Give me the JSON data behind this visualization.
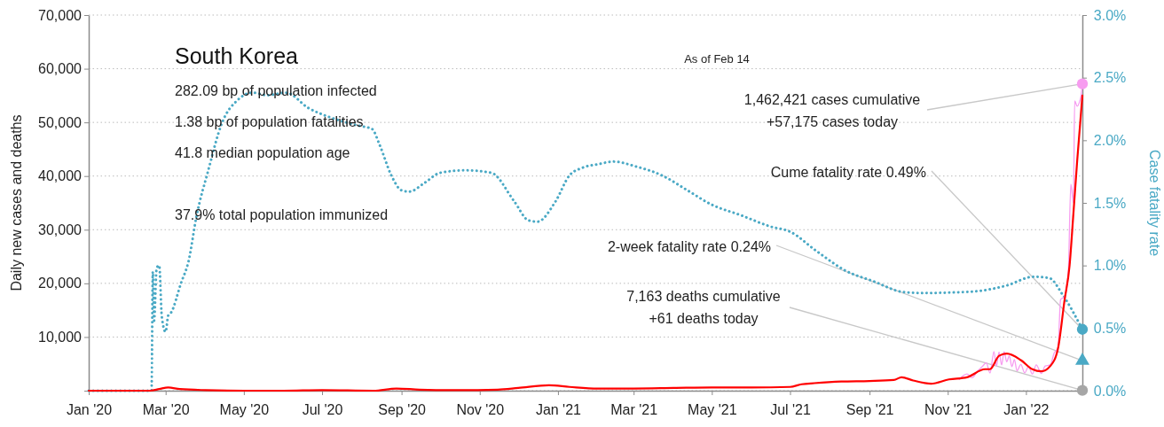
{
  "chart_data": {
    "type": "line",
    "title": "South Korea",
    "ylabel": "Daily new cases and deaths",
    "y2label": "Case fatality rate",
    "xlim": [
      "2020-01-01",
      "2022-02-14"
    ],
    "xticks": [
      {
        "value": "2020-01-01",
        "label": "Jan '20"
      },
      {
        "value": "2020-03-01",
        "label": "Mar '20"
      },
      {
        "value": "2020-05-01",
        "label": "May '20"
      },
      {
        "value": "2020-07-01",
        "label": "Jul '20"
      },
      {
        "value": "2020-09-01",
        "label": "Sep '20"
      },
      {
        "value": "2020-11-01",
        "label": "Nov '20"
      },
      {
        "value": "2021-01-01",
        "label": "Jan '21"
      },
      {
        "value": "2021-03-01",
        "label": "Mar '21"
      },
      {
        "value": "2021-05-01",
        "label": "May '21"
      },
      {
        "value": "2021-07-01",
        "label": "Jul '21"
      },
      {
        "value": "2021-09-01",
        "label": "Sep '21"
      },
      {
        "value": "2021-11-01",
        "label": "Nov '21"
      },
      {
        "value": "2022-01-01",
        "label": "Jan '22"
      }
    ],
    "ylim": [
      0,
      70000
    ],
    "yticks": [
      {
        "value": 0,
        "label": null
      },
      {
        "value": 10000,
        "label": "10,000"
      },
      {
        "value": 20000,
        "label": "20,000"
      },
      {
        "value": 30000,
        "label": "30,000"
      },
      {
        "value": 40000,
        "label": "40,000"
      },
      {
        "value": 50000,
        "label": "50,000"
      },
      {
        "value": 60000,
        "label": "60,000"
      },
      {
        "value": 70000,
        "label": "70,000"
      }
    ],
    "y2lim": [
      0,
      3
    ],
    "y2ticks": [
      {
        "value": 0,
        "label": "0.0%"
      },
      {
        "value": 0.5,
        "label": "0.5%"
      },
      {
        "value": 1,
        "label": "1.0%"
      },
      {
        "value": 1.5,
        "label": "1.5%"
      },
      {
        "value": 2,
        "label": "2.0%"
      },
      {
        "value": 2.5,
        "label": "2.5%"
      },
      {
        "value": 3,
        "label": "3.0%"
      }
    ],
    "grid": "y",
    "series": [
      {
        "axis": "y2",
        "color": "#4aa9c5",
        "line_style": "dotted",
        "marker": "none",
        "x": [
          "2020-01-01",
          "2020-02-19",
          "2020-02-20",
          "2020-02-21",
          "2020-02-23",
          "2020-02-25",
          "2020-02-27",
          "2020-03-01",
          "2020-03-03",
          "2020-03-05",
          "2020-03-13",
          "2020-03-19",
          "2020-03-25",
          "2020-04-03",
          "2020-04-14",
          "2020-04-26",
          "2020-05-08",
          "2020-05-19",
          "2020-06-03",
          "2020-06-20",
          "2020-07-11",
          "2020-07-28",
          "2020-08-09",
          "2020-08-15",
          "2020-08-24",
          "2020-09-01",
          "2020-09-07",
          "2020-09-19",
          "2020-10-01",
          "2020-10-21",
          "2020-11-10",
          "2020-11-28",
          "2020-12-09",
          "2020-12-16",
          "2020-12-30",
          "2021-01-10",
          "2021-01-20",
          "2021-02-02",
          "2021-02-13",
          "2021-03-03",
          "2021-03-23",
          "2021-04-12",
          "2021-04-30",
          "2021-05-24",
          "2021-06-16",
          "2021-07-01",
          "2021-07-21",
          "2021-08-13",
          "2021-09-05",
          "2021-09-26",
          "2021-10-11",
          "2021-11-18",
          "2021-12-17",
          "2022-01-07",
          "2022-01-19",
          "2022-01-30",
          "2022-02-14"
        ],
        "values": [
          0,
          0,
          0.95,
          0.56,
          0.98,
          1.0,
          0.59,
          0.47,
          0.6,
          0.62,
          0.86,
          1.04,
          1.39,
          1.75,
          2.14,
          2.32,
          2.38,
          2.36,
          2.38,
          2.26,
          2.17,
          2.12,
          2.09,
          1.96,
          1.72,
          1.6,
          1.59,
          1.66,
          1.74,
          1.76,
          1.74,
          1.51,
          1.36,
          1.35,
          1.51,
          1.72,
          1.78,
          1.81,
          1.83,
          1.79,
          1.72,
          1.6,
          1.49,
          1.4,
          1.31,
          1.27,
          1.12,
          0.96,
          0.87,
          0.79,
          0.78,
          0.79,
          0.84,
          0.91,
          0.9,
          0.76,
          0.49
        ]
      },
      {
        "color": "#f79cf0",
        "marker": "none",
        "x": [
          "2021-11-10",
          "2021-11-16",
          "2021-11-20",
          "2021-11-24",
          "2021-11-28",
          "2021-12-01",
          "2021-12-04",
          "2021-12-07",
          "2021-12-09",
          "2021-12-11",
          "2021-12-13",
          "2021-12-15",
          "2021-12-17",
          "2021-12-19",
          "2021-12-21",
          "2021-12-23",
          "2021-12-25",
          "2021-12-28",
          "2021-12-31",
          "2022-01-03",
          "2022-01-06",
          "2022-01-09",
          "2022-01-13",
          "2022-01-16",
          "2022-01-20",
          "2022-01-23",
          "2022-01-26",
          "2022-01-28",
          "2022-01-31",
          "2022-02-03",
          "2022-02-05",
          "2022-02-07",
          "2022-02-08",
          "2022-02-10",
          "2022-02-12",
          "2022-02-13",
          "2022-02-14"
        ],
        "values": [
          2100,
          3100,
          2400,
          3600,
          4500,
          5200,
          3300,
          7300,
          4600,
          7200,
          4800,
          7300,
          5400,
          6500,
          4500,
          5800,
          3700,
          4900,
          3300,
          4500,
          3100,
          4800,
          3200,
          4600,
          4800,
          7000,
          8000,
          17000,
          17500,
          22000,
          38500,
          35000,
          54000,
          53000,
          54000,
          55000,
          57175
        ]
      },
      {
        "color": "#ff0000",
        "marker": "none",
        "x": [
          "2020-01-01",
          "2020-02-18",
          "2020-02-25",
          "2020-03-03",
          "2020-03-12",
          "2020-04-01",
          "2020-05-01",
          "2020-06-01",
          "2020-07-01",
          "2020-08-10",
          "2020-08-28",
          "2020-09-15",
          "2020-10-15",
          "2020-11-15",
          "2020-12-01",
          "2020-12-25",
          "2021-01-10",
          "2021-02-01",
          "2021-03-01",
          "2021-04-01",
          "2021-05-01",
          "2021-06-01",
          "2021-07-01",
          "2021-07-10",
          "2021-07-20",
          "2021-08-10",
          "2021-09-01",
          "2021-09-20",
          "2021-09-26",
          "2021-10-05",
          "2021-10-19",
          "2021-11-02",
          "2021-11-16",
          "2021-11-30",
          "2021-12-04",
          "2021-12-11",
          "2021-12-17",
          "2021-12-28",
          "2022-01-06",
          "2022-01-13",
          "2022-01-20",
          "2022-01-26",
          "2022-01-31",
          "2022-02-04",
          "2022-02-07",
          "2022-02-10",
          "2022-02-14"
        ],
        "values": [
          0,
          0,
          300,
          600,
          300,
          100,
          0,
          0,
          100,
          0,
          400,
          200,
          100,
          200,
          500,
          1000,
          700,
          400,
          400,
          500,
          600,
          600,
          700,
          1200,
          1400,
          1700,
          1800,
          2000,
          2500,
          1900,
          1300,
          2100,
          2500,
          4000,
          4000,
          6500,
          6900,
          5700,
          4000,
          3600,
          4600,
          7900,
          16700,
          23300,
          33000,
          43000,
          55000
        ]
      },
      {
        "type": "scatter",
        "color": "#f79cf0",
        "marker": "circle",
        "x": [
          "2022-02-14"
        ],
        "values": [
          57175
        ]
      },
      {
        "type": "scatter",
        "axis": "y2",
        "color": "#4aa9c5",
        "marker": "circle",
        "x": [
          "2022-02-14"
        ],
        "values": [
          0.49
        ]
      },
      {
        "type": "scatter",
        "axis": "y2",
        "color": "#4aa9c5",
        "marker": "triangle",
        "x": [
          "2022-02-14"
        ],
        "values": [
          0.24
        ]
      },
      {
        "type": "scatter",
        "color": "#a6a6a6",
        "marker": "circle",
        "x": [
          "2022-02-14"
        ],
        "values": [
          61
        ]
      }
    ],
    "annotations": [
      "282.09 bp of population infected",
      "1.38 bp of population fatalities",
      "41.8 median population age",
      "37.9% total population immunized",
      "As of Feb 14",
      {
        "text": "1,462,421 cases cumulative\n+57,175 cases today",
        "x": "2022-02-14",
        "y": 57175
      },
      {
        "text": "Cume fatality rate 0.49%",
        "x": "2022-02-14",
        "y": 11400
      },
      {
        "text": "2-week fatality rate 0.24%",
        "x": "2022-02-14",
        "y": 5600
      },
      {
        "text": "7,163 deaths cumulative\n+61 deaths today",
        "x": "2022-02-14",
        "y": 61
      }
    ]
  }
}
